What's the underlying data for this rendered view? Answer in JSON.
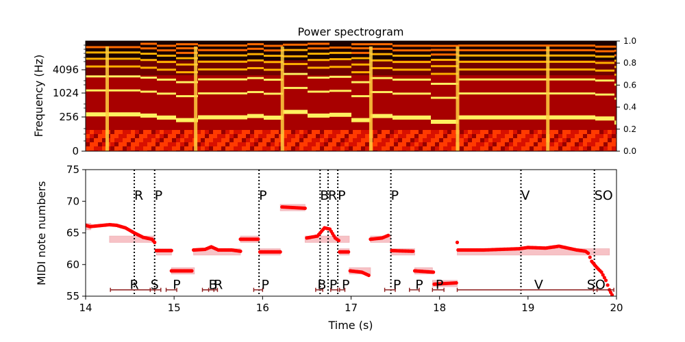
{
  "chart_data": [
    {
      "type": "heatmap",
      "title": "Power spectrogram",
      "xlabel": "",
      "ylabel": "Frequency (Hz)",
      "xlim": [
        14,
        20
      ],
      "yticks": [
        "0",
        "256",
        "1024",
        "4096"
      ],
      "colorbar_ticks": [
        "0.0",
        "0.2",
        "0.4",
        "0.6",
        "0.8",
        "1.0"
      ],
      "colormap": "hot",
      "onset_columns": [
        14.24,
        15.24,
        16.22,
        17.22,
        18.2,
        19.22
      ],
      "fundamental_path": [
        {
          "t": 14.24,
          "f0": 66.0
        },
        {
          "t": 14.6,
          "f0": 64.5
        },
        {
          "t": 14.8,
          "f0": 62.1
        },
        {
          "t": 15.0,
          "f0": 59.0
        },
        {
          "t": 15.24,
          "f0": 62.4
        },
        {
          "t": 15.8,
          "f0": 64.0
        },
        {
          "t": 16.0,
          "f0": 62.0
        },
        {
          "t": 16.22,
          "f0": 69.0
        },
        {
          "t": 16.5,
          "f0": 64.5
        },
        {
          "t": 16.75,
          "f0": 65.5
        },
        {
          "t": 17.0,
          "f0": 59.0
        },
        {
          "t": 17.22,
          "f0": 64.0
        },
        {
          "t": 17.45,
          "f0": 62.1
        },
        {
          "t": 17.9,
          "f0": 57.0
        },
        {
          "t": 18.2,
          "f0": 62.3
        },
        {
          "t": 19.75,
          "f0": 61.0
        },
        {
          "t": 19.95,
          "f0": 56.0
        }
      ]
    },
    {
      "type": "scatter",
      "title": "",
      "xlabel": "Time (s)",
      "ylabel": "MIDI note numbers",
      "xlim": [
        14,
        20
      ],
      "ylim": [
        55,
        75
      ],
      "xticks": [
        "14",
        "15",
        "16",
        "17",
        "18",
        "19",
        "20"
      ],
      "yticks": [
        "55",
        "60",
        "65",
        "70",
        "75"
      ],
      "colors": {
        "pitch": "#ff0000",
        "note": "#f4a3a8",
        "onset": "#000000",
        "segment": "#8b1a1a"
      },
      "notes": [
        {
          "t0": 14.0,
          "t1": 14.06,
          "pitch": 66
        },
        {
          "t0": 14.27,
          "t1": 14.78,
          "pitch": 64
        },
        {
          "t0": 14.8,
          "t1": 14.97,
          "pitch": 62
        },
        {
          "t0": 14.97,
          "t1": 15.23,
          "pitch": 59
        },
        {
          "t0": 15.22,
          "t1": 15.75,
          "pitch": 62
        },
        {
          "t0": 15.75,
          "t1": 15.96,
          "pitch": 64
        },
        {
          "t0": 15.96,
          "t1": 16.2,
          "pitch": 62
        },
        {
          "t0": 16.2,
          "t1": 16.48,
          "pitch": 69
        },
        {
          "t0": 16.48,
          "t1": 16.98,
          "pitch": 64
        },
        {
          "t0": 16.87,
          "t1": 16.98,
          "pitch": 62
        },
        {
          "t0": 16.98,
          "t1": 17.22,
          "pitch": 59
        },
        {
          "t0": 17.22,
          "t1": 17.45,
          "pitch": 64
        },
        {
          "t0": 17.45,
          "t1": 17.72,
          "pitch": 62
        },
        {
          "t0": 17.72,
          "t1": 17.92,
          "pitch": 59
        },
        {
          "t0": 17.92,
          "t1": 18.2,
          "pitch": 57
        },
        {
          "t0": 18.2,
          "t1": 19.92,
          "pitch": 62
        }
      ],
      "pitch_contour": [
        [
          14.0,
          66.2
        ],
        [
          14.05,
          66.0
        ],
        [
          14.27,
          66.3
        ],
        [
          14.35,
          66.2
        ],
        [
          14.45,
          65.8
        ],
        [
          14.55,
          65.0
        ],
        [
          14.65,
          64.3
        ],
        [
          14.75,
          64.0
        ],
        [
          14.78,
          63.5
        ],
        [
          14.8,
          62.2
        ],
        [
          14.97,
          62.2
        ],
        [
          14.97,
          59.0
        ],
        [
          15.2,
          59.0
        ],
        [
          15.22,
          62.3
        ],
        [
          15.35,
          62.4
        ],
        [
          15.42,
          62.8
        ],
        [
          15.5,
          62.3
        ],
        [
          15.65,
          62.3
        ],
        [
          15.75,
          62.1
        ],
        [
          15.75,
          64.0
        ],
        [
          15.95,
          64.0
        ],
        [
          15.97,
          62.0
        ],
        [
          16.2,
          62.0
        ],
        [
          16.22,
          69.1
        ],
        [
          16.48,
          68.9
        ],
        [
          16.5,
          64.2
        ],
        [
          16.62,
          64.5
        ],
        [
          16.7,
          65.8
        ],
        [
          16.76,
          65.6
        ],
        [
          16.82,
          64.2
        ],
        [
          16.86,
          63.8
        ],
        [
          16.87,
          62.0
        ],
        [
          16.97,
          62.0
        ],
        [
          16.99,
          59.0
        ],
        [
          17.12,
          58.8
        ],
        [
          17.2,
          58.3
        ],
        [
          17.22,
          64.0
        ],
        [
          17.35,
          64.2
        ],
        [
          17.42,
          64.6
        ],
        [
          17.46,
          62.2
        ],
        [
          17.7,
          62.1
        ],
        [
          17.72,
          59.0
        ],
        [
          17.93,
          58.8
        ],
        [
          17.94,
          56.9
        ],
        [
          18.19,
          57.1
        ],
        [
          18.2,
          63.5
        ],
        [
          18.21,
          62.3
        ],
        [
          18.5,
          62.3
        ],
        [
          18.7,
          62.4
        ],
        [
          18.9,
          62.5
        ],
        [
          19.0,
          62.7
        ],
        [
          19.2,
          62.6
        ],
        [
          19.35,
          62.9
        ],
        [
          19.55,
          62.3
        ],
        [
          19.65,
          62.1
        ],
        [
          19.68,
          61.8
        ],
        [
          19.72,
          60.5
        ],
        [
          19.78,
          59.5
        ],
        [
          19.83,
          58.8
        ],
        [
          19.88,
          57.5
        ],
        [
          19.92,
          56.0
        ],
        [
          19.95,
          55.2
        ]
      ],
      "onsets": [
        {
          "t": 14.55,
          "label": "R"
        },
        {
          "t": 14.78,
          "label": "P"
        },
        {
          "t": 15.96,
          "label": "P"
        },
        {
          "t": 16.65,
          "label": "B"
        },
        {
          "t": 16.74,
          "label": "R"
        },
        {
          "t": 16.85,
          "label": "P"
        },
        {
          "t": 17.45,
          "label": "P"
        },
        {
          "t": 18.92,
          "label": "V"
        },
        {
          "t": 19.75,
          "label": "SO"
        }
      ],
      "onset_label_y": 71,
      "techniques": [
        {
          "t0": 14.28,
          "t1": 14.78,
          "label": "R",
          "label_t": 14.55
        },
        {
          "t0": 14.73,
          "t1": 14.85,
          "label": "S",
          "label_t": 14.78
        },
        {
          "t0": 14.91,
          "t1": 15.03,
          "label": "P",
          "label_t": 15.03
        },
        {
          "t0": 15.32,
          "t1": 15.45,
          "label": "B",
          "label_t": 15.44
        },
        {
          "t0": 15.39,
          "t1": 15.49,
          "label": "R",
          "label_t": 15.5
        },
        {
          "t0": 15.9,
          "t1": 16.0,
          "label": "P",
          "label_t": 16.03
        },
        {
          "t0": 16.6,
          "t1": 16.68,
          "label": "B",
          "label_t": 16.67
        },
        {
          "t0": 16.77,
          "t1": 16.85,
          "label": "P",
          "label_t": 16.8
        },
        {
          "t0": 16.87,
          "t1": 16.93,
          "label": "P",
          "label_t": 16.94
        },
        {
          "t0": 17.38,
          "t1": 17.5,
          "label": "P",
          "label_t": 17.52
        },
        {
          "t0": 17.66,
          "t1": 17.77,
          "label": "P",
          "label_t": 17.77
        },
        {
          "t0": 17.92,
          "t1": 18.05,
          "label": "P",
          "label_t": 18.0
        },
        {
          "t0": 18.2,
          "t1": 19.78,
          "label": "V",
          "label_t": 19.12
        },
        {
          "t0": 19.74,
          "t1": 19.97,
          "label": "SO",
          "label_t": 19.77
        }
      ],
      "technique_y": 56.0,
      "technique_label_y": 56.9
    }
  ]
}
